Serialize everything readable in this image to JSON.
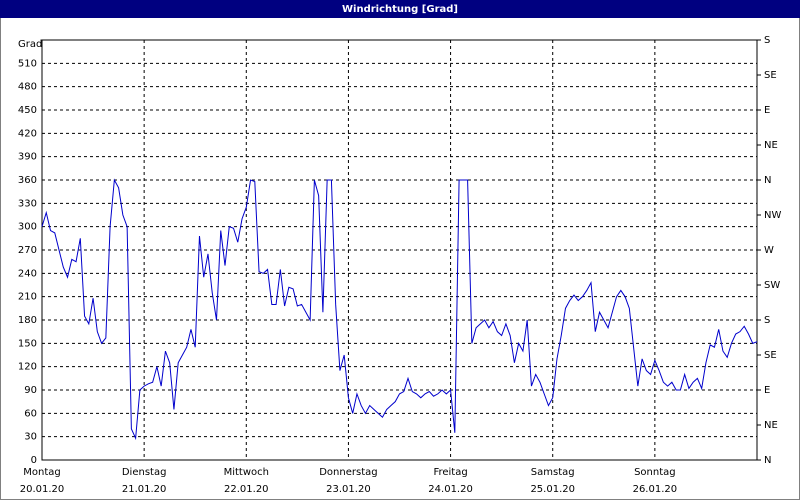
{
  "chart_data": {
    "type": "line",
    "title": "Windrichtung [Grad]",
    "y_label": "Grad",
    "x": [
      0,
      1,
      2,
      3,
      4,
      5,
      6,
      7,
      8,
      9,
      10,
      11,
      12,
      13,
      14,
      15,
      16,
      17,
      18,
      19,
      20,
      21,
      22,
      23,
      24,
      25,
      26,
      27,
      28,
      29,
      30,
      31,
      32,
      33,
      34,
      35,
      36,
      37,
      38,
      39,
      40,
      41,
      42,
      43,
      44,
      45,
      46,
      47,
      48,
      49,
      50,
      51,
      52,
      53,
      54,
      55,
      56,
      57,
      58,
      59,
      60,
      61,
      62,
      63,
      64,
      65,
      66,
      67,
      68,
      69,
      70,
      71,
      72,
      73,
      74,
      75,
      76,
      77,
      78,
      79,
      80,
      81,
      82,
      83,
      84,
      85,
      86,
      87,
      88,
      89,
      90,
      91,
      92,
      93,
      94,
      95,
      96,
      97,
      98,
      99,
      100,
      101,
      102,
      103,
      104,
      105,
      106,
      107,
      108,
      109,
      110,
      111,
      112,
      113,
      114,
      115,
      116,
      117,
      118,
      119,
      120,
      121,
      122,
      123,
      124,
      125,
      126,
      127,
      128,
      129,
      130,
      131,
      132,
      133,
      134,
      135,
      136,
      137,
      138,
      139,
      140,
      141,
      142,
      143,
      144,
      145,
      146,
      147,
      148,
      149,
      150,
      151,
      152,
      153,
      154,
      155,
      156,
      157,
      158,
      159,
      160,
      161,
      162,
      163,
      164,
      165,
      166,
      167,
      168
    ],
    "series": [
      {
        "name": "Windrichtung",
        "color": "#0000cc",
        "values": [
          300,
          318,
          295,
          292,
          270,
          248,
          235,
          258,
          255,
          285,
          185,
          175,
          208,
          165,
          150,
          157,
          300,
          360,
          350,
          315,
          300,
          40,
          28,
          90,
          95,
          98,
          100,
          120,
          95,
          140,
          125,
          65,
          125,
          135,
          145,
          168,
          145,
          288,
          235,
          265,
          215,
          180,
          295,
          250,
          300,
          298,
          280,
          310,
          325,
          360,
          358,
          242,
          240,
          245,
          200,
          200,
          245,
          198,
          222,
          220,
          198,
          200,
          190,
          180,
          360,
          340,
          190,
          360,
          360,
          200,
          115,
          135,
          80,
          60,
          85,
          70,
          60,
          70,
          65,
          60,
          55,
          65,
          70,
          75,
          85,
          88,
          105,
          88,
          85,
          80,
          85,
          88,
          82,
          85,
          90,
          85,
          90,
          35,
          360,
          360,
          360,
          150,
          170,
          175,
          180,
          170,
          178,
          165,
          160,
          175,
          160,
          125,
          150,
          140,
          180,
          95,
          110,
          100,
          85,
          70,
          80,
          130,
          160,
          195,
          205,
          212,
          205,
          210,
          218,
          228,
          165,
          190,
          180,
          170,
          190,
          210,
          218,
          210,
          195,
          145,
          95,
          130,
          115,
          110,
          128,
          115,
          100,
          95,
          100,
          90,
          90,
          110,
          92,
          100,
          105,
          92,
          125,
          148,
          145,
          168,
          140,
          132,
          150,
          162,
          165,
          172,
          162,
          150,
          152
        ]
      }
    ],
    "xlim": [
      0,
      168
    ],
    "xticks": [
      {
        "value": 0,
        "label": "Montag",
        "date": "20.01.20"
      },
      {
        "value": 24,
        "label": "Dienstag",
        "date": "21.01.20"
      },
      {
        "value": 48,
        "label": "Mittwoch",
        "date": "22.01.20"
      },
      {
        "value": 72,
        "label": "Donnerstag",
        "date": "23.01.20"
      },
      {
        "value": 96,
        "label": "Freitag",
        "date": "24.01.20"
      },
      {
        "value": 120,
        "label": "Samstag",
        "date": "25.01.20"
      },
      {
        "value": 144,
        "label": "Sonntag",
        "date": "26.01.20"
      }
    ],
    "ylim": [
      0,
      540
    ],
    "yticks": [
      0,
      30,
      60,
      90,
      120,
      150,
      180,
      210,
      240,
      270,
      300,
      330,
      360,
      390,
      420,
      450,
      480,
      510
    ],
    "y2lim": [
      0,
      540
    ],
    "y2ticks": [
      {
        "value": 0,
        "label": "N"
      },
      {
        "value": 45,
        "label": "NE"
      },
      {
        "value": 90,
        "label": "E"
      },
      {
        "value": 135,
        "label": "SE"
      },
      {
        "value": 180,
        "label": "S"
      },
      {
        "value": 225,
        "label": "SW"
      },
      {
        "value": 270,
        "label": "W"
      },
      {
        "value": 315,
        "label": "NW"
      },
      {
        "value": 360,
        "label": "N"
      },
      {
        "value": 405,
        "label": "NE"
      },
      {
        "value": 450,
        "label": "E"
      },
      {
        "value": 495,
        "label": "SE"
      },
      {
        "value": 540,
        "label": "S"
      }
    ],
    "grid": true
  }
}
